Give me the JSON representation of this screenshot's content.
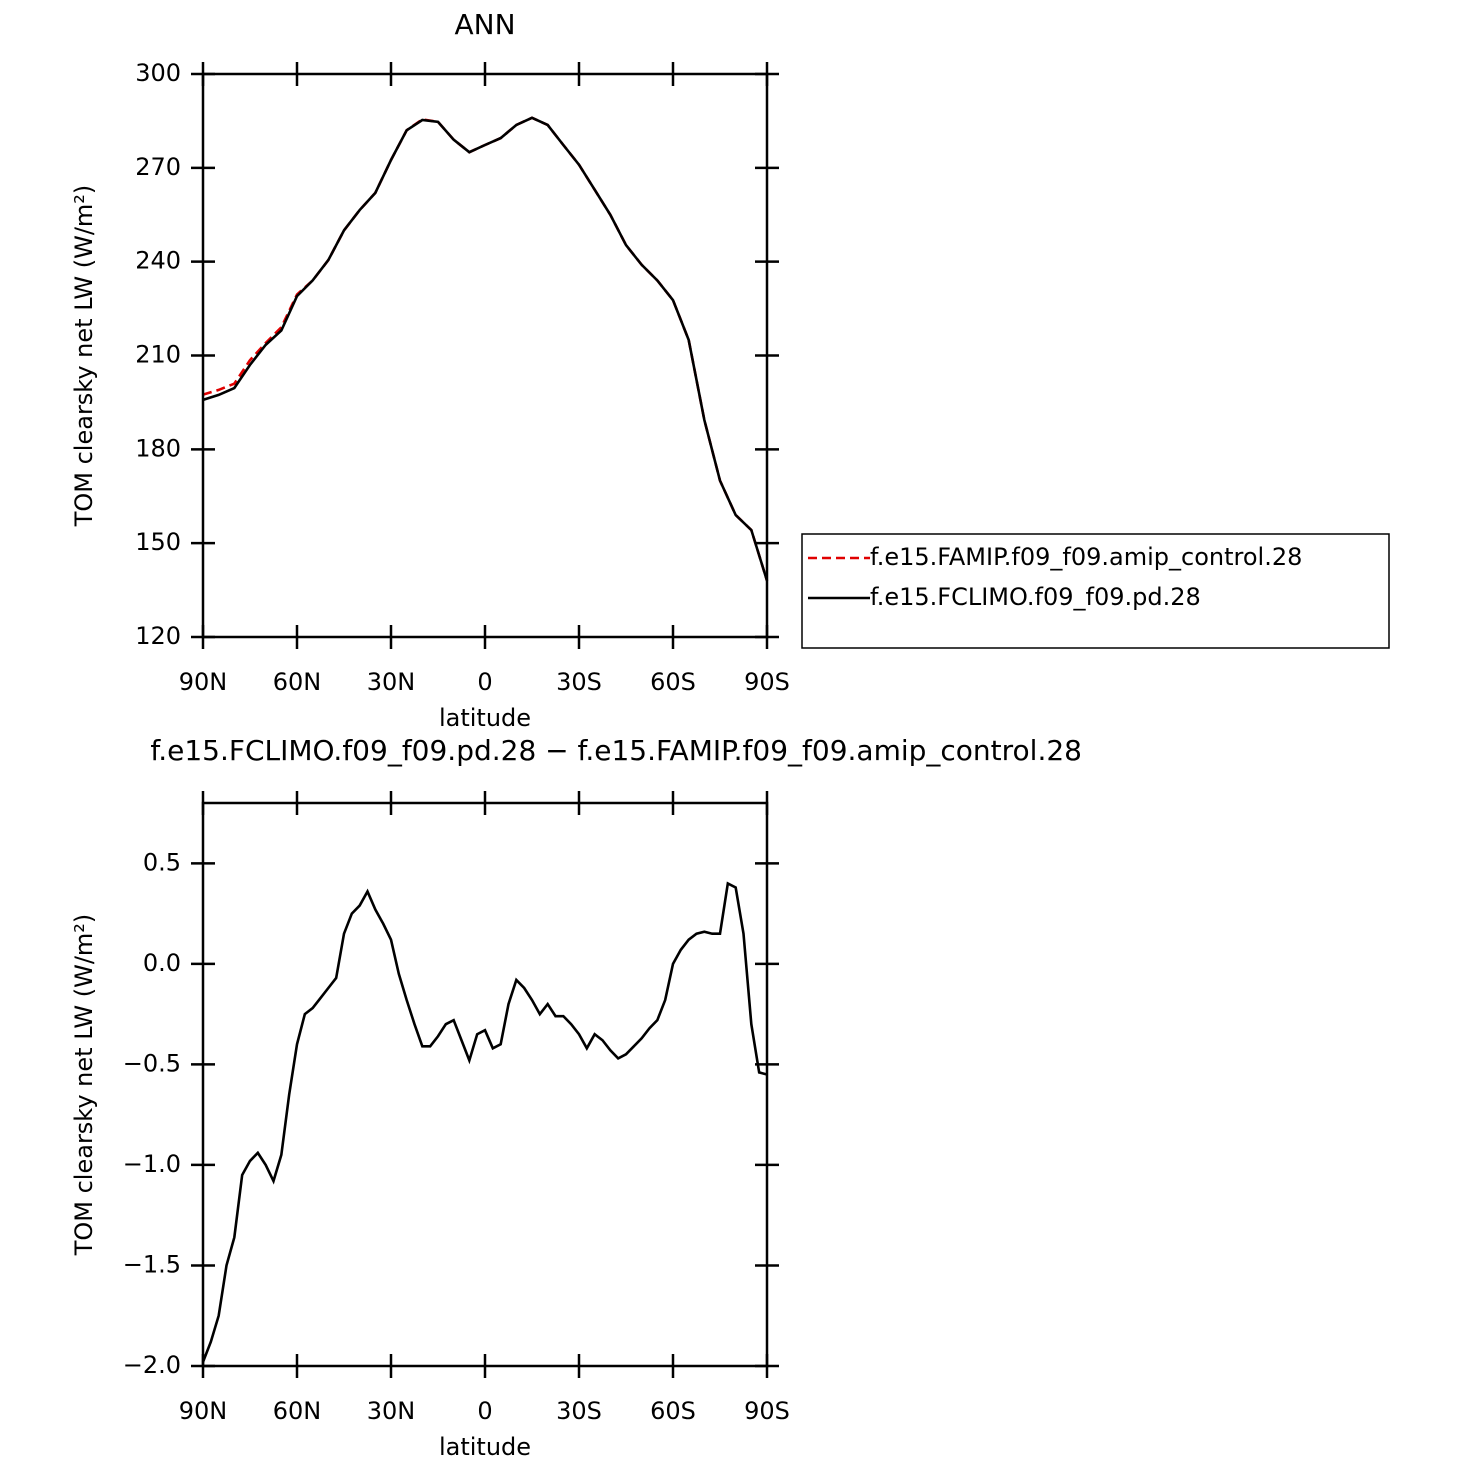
{
  "chart_data": [
    {
      "type": "line",
      "title": "ANN",
      "xlabel": "latitude",
      "ylabel": "TOM clearsky net LW (W/m²)",
      "x": [
        90,
        85,
        80,
        75,
        70,
        65,
        60,
        55,
        50,
        45,
        40,
        35,
        30,
        25,
        20,
        15,
        10,
        5,
        0,
        -5,
        -10,
        -15,
        -20,
        -25,
        -30,
        -35,
        -40,
        -45,
        -50,
        -55,
        -60,
        -65,
        -70,
        -75,
        -80,
        -85,
        -90
      ],
      "series": [
        {
          "name": "f.e15.FAMIP.f09_f09.amip_control.28",
          "color": "#e00000",
          "dashed": true,
          "values": [
            197.5,
            199,
            201,
            208.5,
            214,
            219,
            229.5,
            234,
            240.5,
            250,
            256.5,
            262,
            272.5,
            282,
            285.5,
            284.7,
            279,
            275,
            277.3,
            279.5,
            283.7,
            286,
            283.7,
            277.3,
            271,
            263,
            255,
            245.3,
            239,
            234,
            227.7,
            215,
            189.4,
            170,
            159,
            154.2,
            138
          ]
        },
        {
          "name": "f.e15.FCLIMO.f09_f09.pd.28",
          "color": "#000000",
          "dashed": false,
          "values": [
            195.8,
            197.4,
            199.6,
            207,
            213.4,
            218,
            229,
            234,
            240.5,
            250,
            256.5,
            262,
            272.5,
            282,
            285.3,
            284.7,
            279,
            275,
            277.3,
            279.5,
            283.7,
            286,
            283.7,
            277.3,
            271,
            263,
            255,
            245.3,
            239,
            234,
            227.7,
            215,
            189.4,
            170,
            159,
            154.2,
            138
          ]
        }
      ],
      "xlim": [
        90,
        -90
      ],
      "xticks": [
        {
          "value": 90,
          "label": "90N"
        },
        {
          "value": 60,
          "label": "60N"
        },
        {
          "value": 30,
          "label": "30N"
        },
        0,
        {
          "value": -30,
          "label": "30S"
        },
        {
          "value": -60,
          "label": "60S"
        },
        {
          "value": -90,
          "label": "90S"
        }
      ],
      "ylim": [
        120,
        300
      ],
      "yticks": [
        120,
        150,
        180,
        210,
        240,
        270,
        300
      ],
      "legend": "right"
    },
    {
      "type": "line",
      "title": "f.e15.FCLIMO.f09_f09.pd.28 − f.e15.FAMIP.f09_f09.amip_control.28",
      "xlabel": "latitude",
      "ylabel": "TOM clearsky net LW (W/m²)",
      "x": [
        90,
        87.5,
        85,
        82.5,
        80,
        77.5,
        75,
        72.5,
        70,
        67.5,
        65,
        62.5,
        60,
        57.5,
        55,
        52.5,
        50,
        47.5,
        45,
        42.5,
        40,
        37.5,
        35,
        32.5,
        30,
        27.5,
        25,
        22.5,
        20,
        17.5,
        15,
        12.5,
        10,
        7.5,
        5,
        2.5,
        0,
        -2.5,
        -5,
        -7.5,
        -10,
        -12.5,
        -15,
        -17.5,
        -20,
        -22.5,
        -25,
        -27.5,
        -30,
        -32.5,
        -35,
        -37.5,
        -40,
        -42.5,
        -45,
        -47.5,
        -50,
        -52.5,
        -55,
        -57.5,
        -60,
        -62.5,
        -65,
        -67.5,
        -70,
        -72.5,
        -75,
        -77.5,
        -80,
        -82.5,
        -85,
        -87.5,
        -90
      ],
      "series": [
        {
          "color": "#000000",
          "dashed": false,
          "values": [
            -1.98,
            -1.88,
            -1.75,
            -1.5,
            -1.36,
            -1.05,
            -0.98,
            -0.94,
            -1.0,
            -1.08,
            -0.95,
            -0.65,
            -0.4,
            -0.25,
            -0.22,
            -0.17,
            -0.12,
            -0.07,
            0.15,
            0.25,
            0.29,
            0.36,
            0.27,
            0.2,
            0.12,
            -0.05,
            -0.18,
            -0.3,
            -0.41,
            -0.41,
            -0.36,
            -0.3,
            -0.28,
            -0.38,
            -0.48,
            -0.35,
            -0.33,
            -0.42,
            -0.4,
            -0.2,
            -0.08,
            -0.12,
            -0.18,
            -0.25,
            -0.2,
            -0.26,
            -0.26,
            -0.3,
            -0.35,
            -0.42,
            -0.35,
            -0.38,
            -0.43,
            -0.47,
            -0.45,
            -0.41,
            -0.37,
            -0.32,
            -0.28,
            -0.18,
            0.0,
            0.07,
            0.12,
            0.15,
            0.16,
            0.15,
            0.15,
            0.4,
            0.38,
            0.15,
            -0.3,
            -0.54,
            -0.55
          ]
        }
      ],
      "xlim": [
        90,
        -90
      ],
      "xticks": [
        {
          "value": 90,
          "label": "90N"
        },
        {
          "value": 60,
          "label": "60N"
        },
        {
          "value": 30,
          "label": "30N"
        },
        0,
        {
          "value": -30,
          "label": "30S"
        },
        {
          "value": -60,
          "label": "60S"
        },
        {
          "value": -90,
          "label": "90S"
        }
      ],
      "ylim": [
        -2.0,
        0.8
      ],
      "yticks": [
        {
          "value": -2.0,
          "label": "−2.0"
        },
        {
          "value": -1.5,
          "label": "−1.5"
        },
        {
          "value": -1.0,
          "label": "−1.0"
        },
        {
          "value": -0.5,
          "label": "−0.5"
        },
        {
          "value": 0.0,
          "label": "0.0"
        },
        0.5
      ]
    }
  ]
}
